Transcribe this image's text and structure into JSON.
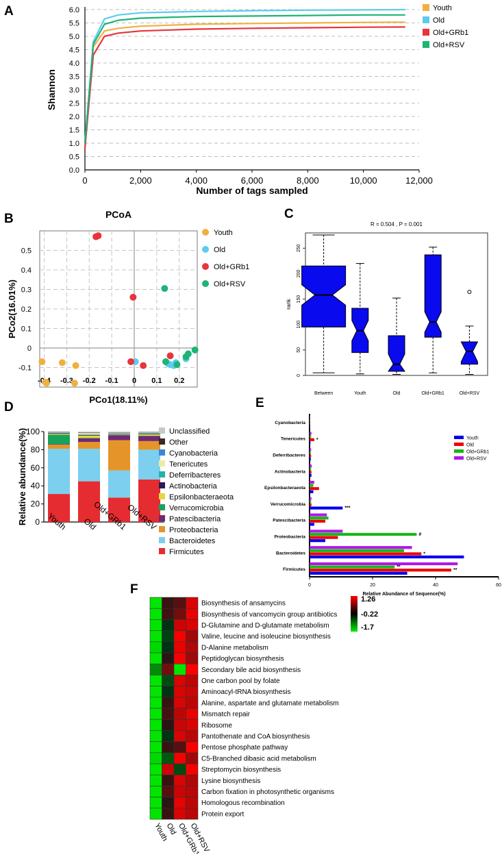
{
  "panel_letters": {
    "a": "A",
    "b": "B",
    "c": "C",
    "d": "D",
    "e": "E",
    "f": "F"
  },
  "chart_data": [
    {
      "id": "A",
      "type": "line",
      "xlabel": "Number of tags sampled",
      "ylabel": "Shannon",
      "xlim": [
        0,
        12000
      ],
      "ylim": [
        0,
        6.0
      ],
      "xticks": [
        0,
        2000,
        4000,
        6000,
        8000,
        10000,
        12000
      ],
      "xtick_labels": [
        "0",
        "2,000",
        "4,000",
        "6,000",
        "8,000",
        "10,000",
        "12,000"
      ],
      "yticks": [
        0,
        0.5,
        1.0,
        1.5,
        2.0,
        2.5,
        3.0,
        3.5,
        4.0,
        4.5,
        5.0,
        5.5,
        6.0
      ],
      "ytick_labels": [
        "0.0",
        "0.5",
        "1.0",
        "1.5",
        "2.0",
        "2.5",
        "3.0",
        "3.5",
        "4.0",
        "4.5",
        "5.0",
        "5.5",
        "6.0"
      ],
      "series": [
        {
          "name": "Youth",
          "color": "#f0b040",
          "x": [
            0,
            300,
            700,
            1200,
            2000,
            4000,
            6000,
            8000,
            10000,
            11500
          ],
          "y": [
            0.9,
            4.6,
            5.2,
            5.3,
            5.38,
            5.45,
            5.48,
            5.5,
            5.52,
            5.53
          ]
        },
        {
          "name": "Old",
          "color": "#5ecbed",
          "x": [
            0,
            300,
            700,
            1200,
            2000,
            4000,
            6000,
            8000,
            10000,
            11500
          ],
          "y": [
            1.0,
            4.8,
            5.65,
            5.8,
            5.88,
            5.93,
            5.96,
            5.98,
            5.99,
            6.0
          ]
        },
        {
          "name": "Old+GRb1",
          "color": "#e8343c",
          "x": [
            0,
            300,
            700,
            1200,
            2000,
            4000,
            6000,
            8000,
            10000,
            11500
          ],
          "y": [
            0.8,
            4.3,
            5.0,
            5.12,
            5.2,
            5.27,
            5.3,
            5.32,
            5.34,
            5.35
          ]
        },
        {
          "name": "Old+RSV",
          "color": "#1db477",
          "x": [
            0,
            300,
            700,
            1200,
            2000,
            4000,
            6000,
            8000,
            10000,
            11500
          ],
          "y": [
            1.0,
            4.7,
            5.45,
            5.6,
            5.68,
            5.74,
            5.76,
            5.78,
            5.8,
            5.8
          ]
        }
      ]
    },
    {
      "id": "B",
      "type": "scatter",
      "title": "PCoA",
      "xlabel": "PCo1(18.11%)",
      "ylabel": "PCo2(16.01%)",
      "xlim": [
        -0.42,
        0.28
      ],
      "ylim": [
        -0.2,
        0.6
      ],
      "xticks": [
        -0.4,
        -0.3,
        -0.2,
        -0.1,
        0,
        0.1,
        0.2
      ],
      "xtick_labels": [
        "-0.4",
        "-0.3",
        "-0.2",
        "-0.1",
        "0",
        "0.1",
        "0.2"
      ],
      "yticks": [
        -0.1,
        0,
        0.1,
        0.2,
        0.3,
        0.4,
        0.5
      ],
      "ytick_labels": [
        "-0.1",
        "0",
        "0.1",
        "0.2",
        "0.3",
        "0.4",
        "0.5"
      ],
      "series": [
        {
          "name": "Youth",
          "color": "#f0b040",
          "points": [
            [
              -0.41,
              -0.07
            ],
            [
              -0.395,
              -0.175
            ],
            [
              -0.39,
              -0.18
            ],
            [
              -0.32,
              -0.075
            ],
            [
              -0.26,
              -0.09
            ],
            [
              -0.265,
              -0.18
            ]
          ]
        },
        {
          "name": "Old",
          "color": "#5ecbed",
          "points": [
            [
              0.005,
              -0.07
            ],
            [
              0.15,
              -0.08
            ],
            [
              0.16,
              -0.085
            ],
            [
              0.175,
              -0.09
            ],
            [
              0.185,
              -0.075
            ],
            [
              0.23,
              -0.055
            ]
          ]
        },
        {
          "name": "Old+GRb1",
          "color": "#e8343c",
          "points": [
            [
              -0.17,
              0.57
            ],
            [
              -0.16,
              0.575
            ],
            [
              -0.005,
              0.26
            ],
            [
              -0.015,
              -0.07
            ],
            [
              0.04,
              -0.09
            ],
            [
              0.16,
              -0.04
            ]
          ]
        },
        {
          "name": "Old+RSV",
          "color": "#1db477",
          "points": [
            [
              0.135,
              0.305
            ],
            [
              0.14,
              -0.07
            ],
            [
              0.19,
              -0.085
            ],
            [
              0.23,
              -0.045
            ],
            [
              0.24,
              -0.03
            ],
            [
              0.27,
              -0.01
            ]
          ]
        }
      ]
    },
    {
      "id": "C",
      "type": "box",
      "title": "R = 0.504 , P = 0.001",
      "ylabel": "rank",
      "ylim": [
        0,
        280
      ],
      "yticks": [
        0,
        50,
        100,
        150,
        200,
        250
      ],
      "ytick_labels": [
        "0",
        "50",
        "100",
        "150",
        "200",
        "250"
      ],
      "categories": [
        "Between",
        "Youth",
        "Old",
        "Old+GRb1",
        "Old+RSV"
      ],
      "boxes": [
        {
          "min": 5,
          "q1": 95,
          "median": 158,
          "q3": 215,
          "max": 276,
          "outliers": []
        },
        {
          "min": 3,
          "q1": 45,
          "median": 88,
          "q3": 132,
          "max": 220,
          "outliers": []
        },
        {
          "min": 2,
          "q1": 8,
          "median": 22,
          "q3": 78,
          "max": 152,
          "outliers": []
        },
        {
          "min": 5,
          "q1": 75,
          "median": 105,
          "q3": 237,
          "max": 252,
          "outliers": []
        },
        {
          "min": 2,
          "q1": 22,
          "median": 47,
          "q3": 66,
          "max": 97,
          "outliers": [
            164
          ]
        }
      ]
    },
    {
      "id": "D",
      "type": "stacked-bar",
      "ylabel": "Relative abundance(%)",
      "ylim": [
        0,
        100
      ],
      "yticks": [
        0,
        20,
        40,
        60,
        80,
        100
      ],
      "ytick_labels": [
        "0",
        "20",
        "40",
        "60",
        "80",
        "100"
      ],
      "categories": [
        "Youth",
        "Old",
        "Old+GRb1",
        "Old+RSV"
      ],
      "series": [
        {
          "name": "Firmicutes",
          "color": "#e52c30",
          "values": [
            31,
            45,
            27,
            47
          ]
        },
        {
          "name": "Bacteroidetes",
          "color": "#7ccfee",
          "values": [
            50,
            36,
            30,
            33
          ]
        },
        {
          "name": "Proteobacteria",
          "color": "#e5942a",
          "values": [
            4.5,
            7.5,
            33.5,
            9.5
          ]
        },
        {
          "name": "Patescibacteria",
          "color": "#722873",
          "values": [
            0.5,
            4,
            5.5,
            5.5
          ]
        },
        {
          "name": "Verrucomicrobia",
          "color": "#17a35c",
          "values": [
            10.5,
            0.6,
            0.4,
            0.6
          ]
        },
        {
          "name": "Epsilonbacteraeota",
          "color": "#e8d53c",
          "values": [
            1,
            2.5,
            0.4,
            1.5
          ]
        },
        {
          "name": "Actinobacteria",
          "color": "#2b1a55",
          "values": [
            0.7,
            0.7,
            0.5,
            0.7
          ]
        },
        {
          "name": "Deferribacteres",
          "color": "#26b3a6",
          "values": [
            0.4,
            0.5,
            0.4,
            0.5
          ]
        },
        {
          "name": "Tenericutes",
          "color": "#f1e9a0",
          "values": [
            0.4,
            1.5,
            0.6,
            0.6
          ]
        },
        {
          "name": "Cyanobacteria",
          "color": "#3d86d6",
          "values": [
            0.3,
            0.3,
            0.2,
            0.3
          ]
        },
        {
          "name": "Other",
          "color": "#3a2a22",
          "values": [
            0.4,
            0.4,
            0.3,
            0.3
          ]
        },
        {
          "name": "Unclassified",
          "color": "#c8c8c8",
          "values": [
            0.3,
            1,
            1.2,
            0.5
          ]
        }
      ]
    },
    {
      "id": "E",
      "type": "horizontal-bar",
      "xlabel": "Relative Abundance of Sequence(%)",
      "xlim": [
        0,
        60
      ],
      "xticks": [
        0,
        20,
        40,
        60
      ],
      "xtick_labels": [
        "0",
        "20",
        "40",
        "60"
      ],
      "categories": [
        "Cyanobacteria",
        "Tenericutes",
        "Deferribacteres",
        "Actinobacteria",
        "Epsilonbacteraeota",
        "Verrucomicrobia",
        "Patescibacteria",
        "Proteobacteria",
        "Bacteroidetes",
        "Firmicutes"
      ],
      "series": [
        {
          "name": "Youth",
          "color": "#0000ee",
          "values": [
            0.2,
            0.3,
            0.4,
            0.6,
            1.2,
            10.5,
            1.5,
            5,
            49,
            31
          ]
        },
        {
          "name": "Old",
          "color": "#ee0000",
          "values": [
            0.2,
            1.5,
            0.5,
            0.6,
            3,
            0.6,
            5,
            9,
            35.5,
            45
          ]
        },
        {
          "name": "Old+GRb1",
          "color": "#18b818",
          "values": [
            0.2,
            0.5,
            0.4,
            0.5,
            1.2,
            0.5,
            6,
            34,
            30,
            27
          ]
        },
        {
          "name": "Old+RSV",
          "color": "#b018e8",
          "values": [
            0.2,
            0.6,
            0.5,
            0.7,
            1.5,
            0.6,
            5.5,
            10.5,
            32.5,
            47
          ]
        }
      ],
      "annotations": [
        "*",
        "***",
        "#",
        "*",
        "**",
        "**"
      ]
    },
    {
      "id": "F",
      "type": "heatmap",
      "columns": [
        "Youth",
        "Old",
        "Old+GRb1",
        "Old+RSV"
      ],
      "rows": [
        "Biosynthesis of ansamycins",
        "Biosynthesis of vancomycin group antibiotics",
        "D-Glutamine and D-glutamate metabolism",
        "Valine, leucine and isoleucine biosynthesis",
        "D-Alanine metabolism",
        "Peptidoglycan biosynthesis",
        "Secondary bile acid biosynthesis",
        "One carbon pool by folate",
        "Aminoacyl-tRNA biosynthesis",
        "Alanine, aspartate and glutamate metabolism",
        "Mismatch repair",
        "Ribosome",
        "Pantothenate and CoA biosynthesis",
        "Pentose phosphate pathway",
        "C5-Branched dibasic acid metabolism",
        "Streptomycin biosynthesis",
        "Lysine biosynthesis",
        "Carbon fixation in photosynthetic organisms",
        "Homologous recombination",
        "Protein export"
      ],
      "values": [
        [
          -1.7,
          -0.1,
          0.1,
          1.0
        ],
        [
          -1.7,
          -0.05,
          0.3,
          1.1
        ],
        [
          -1.7,
          -0.3,
          0.9,
          1.0
        ],
        [
          -1.7,
          -0.4,
          1.2,
          0.6
        ],
        [
          -1.6,
          -0.3,
          1.1,
          0.7
        ],
        [
          -1.7,
          -0.2,
          1.2,
          0.6
        ],
        [
          -1.0,
          0.3,
          -1.7,
          1.26
        ],
        [
          -1.7,
          -0.5,
          1.0,
          0.8
        ],
        [
          -1.7,
          -0.3,
          1.0,
          0.9
        ],
        [
          -1.7,
          -0.1,
          1.0,
          0.8
        ],
        [
          -1.7,
          0.0,
          0.8,
          1.1
        ],
        [
          -1.7,
          -0.2,
          0.9,
          1.0
        ],
        [
          -1.7,
          -0.3,
          1.0,
          0.8
        ],
        [
          -1.7,
          -0.1,
          0.1,
          1.2
        ],
        [
          -1.6,
          -0.6,
          1.2,
          0.6
        ],
        [
          -1.7,
          0.9,
          -0.5,
          1.2
        ],
        [
          -1.7,
          -0.1,
          1.0,
          0.7
        ],
        [
          -1.7,
          0.1,
          0.9,
          0.8
        ],
        [
          -1.7,
          -0.2,
          1.1,
          0.8
        ],
        [
          -1.7,
          -0.1,
          1.0,
          0.8
        ]
      ],
      "colorbar_labels": [
        "1.26",
        "-0.22",
        "-1.7"
      ]
    }
  ]
}
